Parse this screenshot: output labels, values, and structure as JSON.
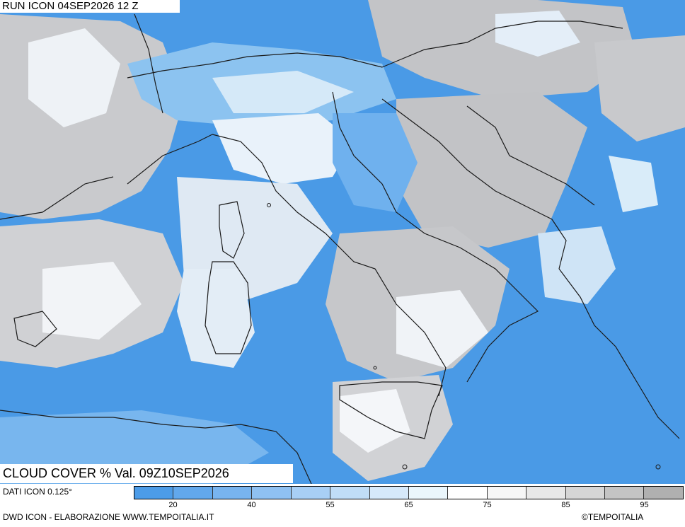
{
  "header": {
    "run_label": "RUN ICON 04SEP2026 12 Z"
  },
  "map": {
    "title": "CLOUD COVER % Val. 09Z10SEP2026",
    "field": "cloud cover",
    "colors": {
      "sea_clear": "#4a9ae6",
      "mid_blue": "#7bb8ee",
      "light_blue": "#bfe0f7",
      "white": "#f6f8fb",
      "light_gray": "#dcdde0",
      "gray": "#c2c3c6",
      "border": "#1a1a1a"
    }
  },
  "legend": {
    "dati_label": "DATI ICON 0.125°",
    "bins": [
      "#4c9ce8",
      "#62a8ec",
      "#78b4ef",
      "#8fc1f2",
      "#a8cff5",
      "#c0ddf7",
      "#d6e9fa",
      "#eaf6fc",
      "#ffffff",
      "#f6f6f6",
      "#e8e8e8",
      "#d6d6d6",
      "#c4c4c4",
      "#b0b0b0"
    ],
    "tick_labels": [
      "20",
      "40",
      "55",
      "65",
      "75",
      "85",
      "95"
    ]
  },
  "footer": {
    "credit": "DWD ICON - ELABORAZIONE WWW.TEMPOITALIA.IT",
    "copyright": "©TEMPOITALIA"
  }
}
